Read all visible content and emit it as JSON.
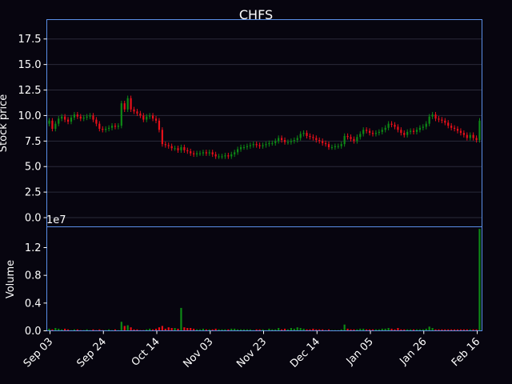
{
  "chart_data": {
    "type": "candlestick",
    "title": "CHFS",
    "price_panel": {
      "ylabel": "Stock price",
      "ylim": [
        -0.9,
        19.4
      ],
      "yticks": [
        "0.0",
        "2.5",
        "5.0",
        "7.5",
        "10.0",
        "12.5",
        "15.0",
        "17.5"
      ],
      "grid": true
    },
    "volume_panel": {
      "ylabel": "Volume",
      "offset_label": "1e7",
      "ylim": [
        0,
        1.5
      ],
      "yticks": [
        "0.0",
        "0.4",
        "0.8",
        "1.2"
      ]
    },
    "xticks": [
      "Sep 03",
      "Sep 24",
      "Oct 14",
      "Nov 03",
      "Nov 23",
      "Dec 14",
      "Jan 05",
      "Jan 26",
      "Feb 16"
    ],
    "x_range_days": [
      -3,
      171
    ],
    "colors": {
      "up": "#0e8a16",
      "down": "#e8101a",
      "axis": "#5b8fe8",
      "grid": "#2a2a3a",
      "background": "#07050f"
    },
    "closes": [
      9.5,
      8.7,
      9.2,
      9.7,
      9.9,
      9.6,
      9.4,
      9.8,
      10.1,
      9.9,
      9.7,
      9.8,
      9.9,
      10.0,
      9.6,
      9.2,
      8.7,
      8.6,
      8.7,
      8.8,
      9.0,
      8.9,
      9.0,
      11.2,
      10.6,
      11.7,
      10.6,
      10.4,
      10.2,
      10.0,
      9.6,
      9.9,
      10.0,
      9.7,
      9.5,
      8.6,
      7.2,
      7.1,
      7.0,
      6.8,
      6.8,
      6.6,
      6.9,
      6.6,
      6.5,
      6.3,
      6.2,
      6.3,
      6.3,
      6.4,
      6.3,
      6.4,
      6.2,
      6.0,
      6.0,
      6.0,
      6.1,
      6.0,
      6.2,
      6.4,
      6.7,
      6.9,
      6.9,
      7.0,
      7.1,
      7.2,
      7.1,
      7.0,
      7.1,
      7.2,
      7.3,
      7.3,
      7.5,
      7.8,
      7.6,
      7.4,
      7.4,
      7.5,
      7.6,
      7.8,
      8.2,
      8.3,
      8.0,
      7.9,
      7.8,
      7.6,
      7.5,
      7.3,
      7.2,
      6.9,
      6.9,
      7.0,
      7.0,
      7.2,
      8.0,
      7.9,
      7.7,
      7.5,
      7.9,
      8.2,
      8.6,
      8.5,
      8.3,
      8.2,
      8.3,
      8.4,
      8.6,
      8.8,
      9.2,
      9.1,
      8.9,
      8.6,
      8.3,
      8.1,
      8.4,
      8.5,
      8.4,
      8.6,
      8.8,
      8.9,
      9.2,
      9.9,
      10.1,
      9.7,
      9.6,
      9.5,
      9.3,
      9.0,
      8.8,
      8.7,
      8.5,
      8.3,
      8.1,
      7.8,
      8.1,
      7.8,
      7.6,
      9.5
    ],
    "volumes_e7": [
      0.03,
      0.02,
      0.04,
      0.03,
      0.02,
      0.03,
      0.02,
      0.01,
      0.02,
      0.02,
      0.01,
      0.01,
      0.02,
      0.01,
      0.02,
      0.01,
      0.02,
      0.01,
      0.01,
      0.02,
      0.01,
      0.02,
      0.01,
      0.13,
      0.07,
      0.08,
      0.05,
      0.02,
      0.02,
      0.01,
      0.01,
      0.02,
      0.03,
      0.02,
      0.03,
      0.05,
      0.07,
      0.03,
      0.05,
      0.04,
      0.04,
      0.03,
      0.33,
      0.05,
      0.04,
      0.04,
      0.03,
      0.02,
      0.02,
      0.03,
      0.02,
      0.02,
      0.02,
      0.03,
      0.02,
      0.02,
      0.02,
      0.02,
      0.03,
      0.03,
      0.02,
      0.02,
      0.02,
      0.02,
      0.02,
      0.01,
      0.02,
      0.02,
      0.02,
      0.01,
      0.03,
      0.02,
      0.02,
      0.04,
      0.02,
      0.03,
      0.02,
      0.04,
      0.03,
      0.05,
      0.04,
      0.03,
      0.02,
      0.02,
      0.03,
      0.02,
      0.02,
      0.02,
      0.01,
      0.02,
      0.01,
      0.01,
      0.01,
      0.02,
      0.09,
      0.03,
      0.02,
      0.02,
      0.02,
      0.03,
      0.03,
      0.02,
      0.02,
      0.02,
      0.02,
      0.02,
      0.03,
      0.03,
      0.04,
      0.03,
      0.02,
      0.04,
      0.02,
      0.02,
      0.02,
      0.02,
      0.02,
      0.02,
      0.02,
      0.02,
      0.03,
      0.06,
      0.04,
      0.02,
      0.02,
      0.02,
      0.02,
      0.02,
      0.02,
      0.02,
      0.02,
      0.02,
      0.02,
      0.02,
      0.02,
      0.02,
      0.02,
      1.47
    ]
  }
}
